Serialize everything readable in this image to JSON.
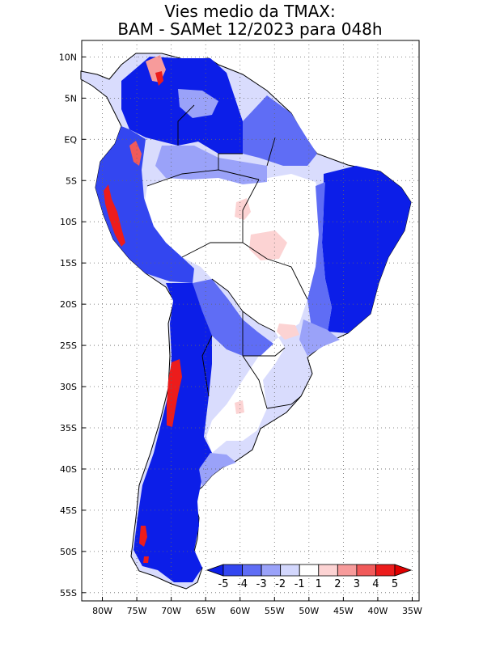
{
  "title": {
    "line1": "Vies medio da TMAX:",
    "line2": "BAM - SAMet 12/2023  para 048h"
  },
  "map": {
    "region": "South America",
    "variable": "TMAX bias",
    "lon_range": [
      -83,
      -34
    ],
    "lat_range": [
      -56,
      12
    ],
    "lon_ticks": [
      {
        "value": -80,
        "label": "80W"
      },
      {
        "value": -75,
        "label": "75W"
      },
      {
        "value": -70,
        "label": "70W"
      },
      {
        "value": -65,
        "label": "65W"
      },
      {
        "value": -60,
        "label": "60W"
      },
      {
        "value": -55,
        "label": "55W"
      },
      {
        "value": -50,
        "label": "50W"
      },
      {
        "value": -45,
        "label": "45W"
      },
      {
        "value": -40,
        "label": "40W"
      },
      {
        "value": -35,
        "label": "35W"
      }
    ],
    "lat_ticks": [
      {
        "value": 10,
        "label": "10N"
      },
      {
        "value": 5,
        "label": "5N"
      },
      {
        "value": 0,
        "label": "EQ"
      },
      {
        "value": -5,
        "label": "5S"
      },
      {
        "value": -10,
        "label": "10S"
      },
      {
        "value": -15,
        "label": "15S"
      },
      {
        "value": -20,
        "label": "20S"
      },
      {
        "value": -25,
        "label": "25S"
      },
      {
        "value": -30,
        "label": "30S"
      },
      {
        "value": -35,
        "label": "35S"
      },
      {
        "value": -40,
        "label": "40S"
      },
      {
        "value": -45,
        "label": "45S"
      },
      {
        "value": -50,
        "label": "50S"
      },
      {
        "value": -55,
        "label": "55S"
      }
    ]
  },
  "colorbar": {
    "labels": [
      "-5",
      "-4",
      "-3",
      "-2",
      "-1",
      "1",
      "2",
      "3",
      "4",
      "5"
    ],
    "colors": [
      "#0c1ee8",
      "#3346f0",
      "#5f6df5",
      "#9aa2f9",
      "#d3d7fd",
      "#ffffff",
      "#fcd3d3",
      "#f79b9b",
      "#f15a5a",
      "#ec1c1c",
      "#e00000"
    ]
  }
}
